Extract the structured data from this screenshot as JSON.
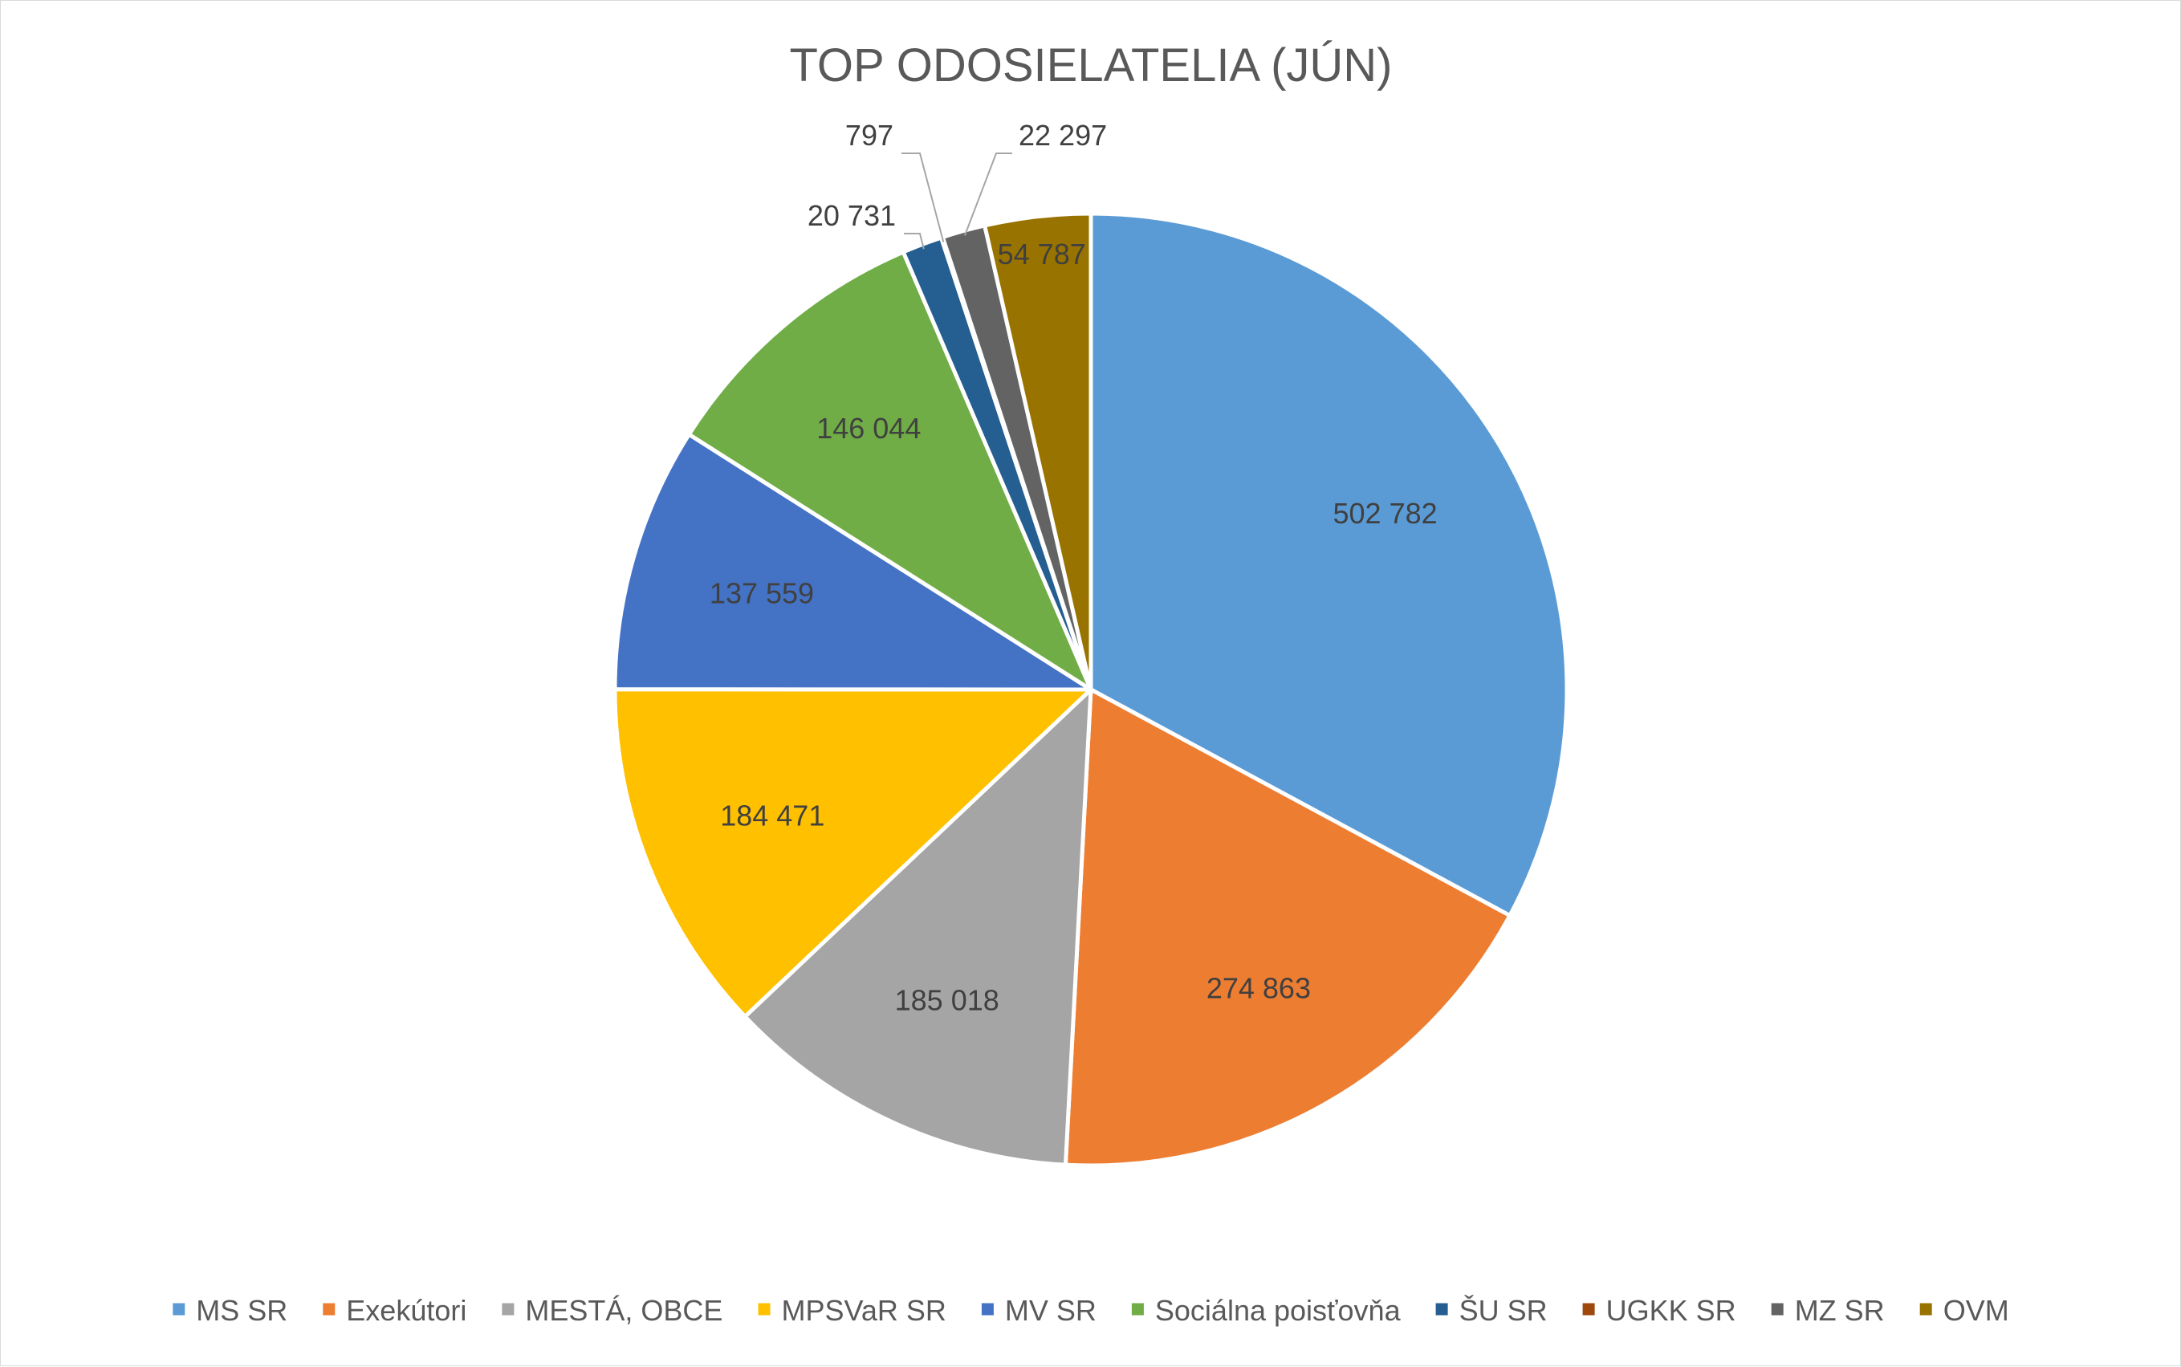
{
  "chart_data": {
    "type": "pie",
    "title": "TOP ODOSIELATELIA (JÚN)",
    "categories": [
      "MS SR",
      "Exekútori",
      "MESTÁ, OBCE",
      "MPSVaR SR",
      "MV SR",
      "Sociálna poisťovňa",
      "ŠU SR",
      "UGKK SR",
      "MZ SR",
      "OVM"
    ],
    "values": [
      502782,
      274863,
      185018,
      184471,
      137559,
      146044,
      20731,
      797,
      22297,
      54787
    ],
    "value_labels": [
      "502 782",
      "274 863",
      "185 018",
      "184 471",
      "137 559",
      "146 044",
      "20 731",
      "797",
      "22 297",
      "54 787"
    ],
    "colors": [
      "#5b9bd5",
      "#ed7d31",
      "#a5a5a5",
      "#ffc000",
      "#4472c4",
      "#70ad47",
      "#255e91",
      "#9e480e",
      "#636363",
      "#997300"
    ],
    "start_angle_deg": 0,
    "direction": "clockwise",
    "legend": "bottom"
  }
}
